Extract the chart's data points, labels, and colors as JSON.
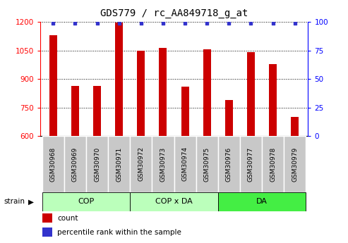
{
  "title": "GDS779 / rc_AA849718_g_at",
  "samples": [
    "GSM30968",
    "GSM30969",
    "GSM30970",
    "GSM30971",
    "GSM30972",
    "GSM30973",
    "GSM30974",
    "GSM30975",
    "GSM30976",
    "GSM30977",
    "GSM30978",
    "GSM30979"
  ],
  "counts": [
    1130,
    862,
    865,
    1195,
    1050,
    1065,
    860,
    1055,
    790,
    1040,
    980,
    700
  ],
  "percentiles": [
    99,
    99,
    99,
    99,
    99,
    99,
    99,
    99,
    99,
    99,
    99,
    99
  ],
  "groups": [
    {
      "label": "COP",
      "start": 0,
      "end": 4,
      "color": "#bbffbb"
    },
    {
      "label": "COP x DA",
      "start": 4,
      "end": 8,
      "color": "#bbffbb"
    },
    {
      "label": "DA",
      "start": 8,
      "end": 12,
      "color": "#44ee44"
    }
  ],
  "ylim_left": [
    600,
    1200
  ],
  "ylim_right": [
    0,
    100
  ],
  "yticks_left": [
    600,
    750,
    900,
    1050,
    1200
  ],
  "yticks_right": [
    0,
    25,
    50,
    75,
    100
  ],
  "bar_color": "#cc0000",
  "dot_color": "#3333cc",
  "bar_width": 0.35,
  "tick_area_color": "#c8c8c8",
  "legend_items": [
    {
      "label": "count",
      "color": "#cc0000"
    },
    {
      "label": "percentile rank within the sample",
      "color": "#3333cc"
    }
  ]
}
